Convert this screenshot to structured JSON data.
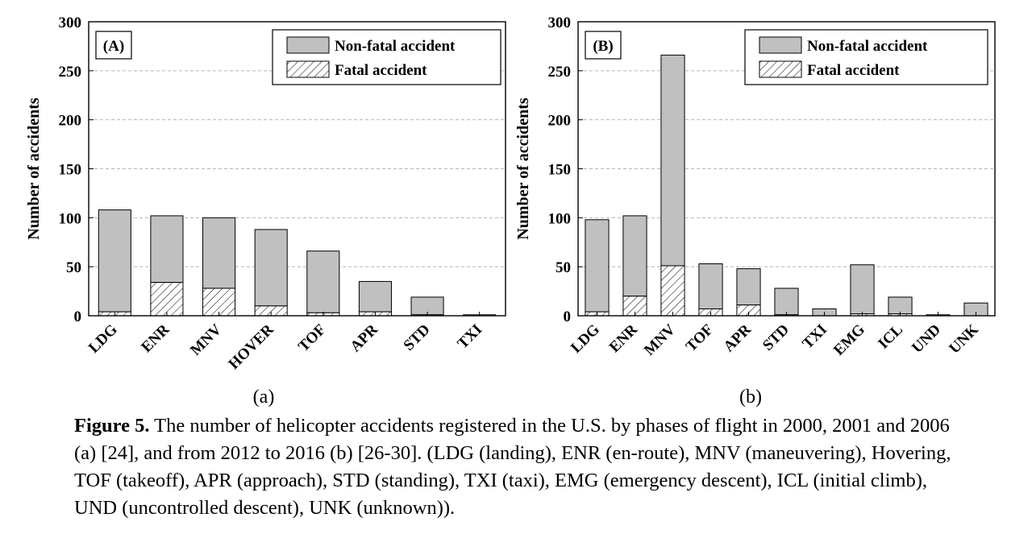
{
  "chart_data": [
    {
      "type": "bar",
      "panel_label": "(A)",
      "sublabel": "(a)",
      "ylabel": "Number of accidents",
      "ylim": [
        0,
        300
      ],
      "yticks": [
        0,
        50,
        100,
        150,
        200,
        250,
        300
      ],
      "grid": "horizontal-dashed",
      "legend_position": "top-right",
      "stacked": true,
      "categories": [
        "LDG",
        "ENR",
        "MNV",
        "HOVER",
        "TOF",
        "APR",
        "STD",
        "TXI"
      ],
      "series": [
        {
          "name": "Non-fatal accident",
          "fill": "#c0c0c0",
          "values": [
            104,
            68,
            72,
            78,
            63,
            31,
            18,
            1
          ]
        },
        {
          "name": "Fatal accident",
          "fill": "hatch",
          "values": [
            4,
            34,
            28,
            10,
            3,
            4,
            1,
            0
          ]
        }
      ]
    },
    {
      "type": "bar",
      "panel_label": "(B)",
      "sublabel": "(b)",
      "ylabel": "Number of accidents",
      "ylim": [
        0,
        300
      ],
      "yticks": [
        0,
        50,
        100,
        150,
        200,
        250,
        300
      ],
      "grid": "horizontal-dashed",
      "legend_position": "top-right",
      "stacked": true,
      "categories": [
        "LDG",
        "ENR",
        "MNV",
        "TOF",
        "APR",
        "STD",
        "TXI",
        "EMG",
        "ICL",
        "UND",
        "UNK"
      ],
      "series": [
        {
          "name": "Non-fatal accident",
          "fill": "#c0c0c0",
          "values": [
            94,
            82,
            215,
            46,
            37,
            27,
            7,
            50,
            17,
            1,
            13
          ]
        },
        {
          "name": "Fatal accident",
          "fill": "hatch",
          "values": [
            4,
            20,
            51,
            7,
            11,
            1,
            0,
            2,
            2,
            0,
            0
          ]
        }
      ]
    }
  ],
  "caption": {
    "label": "Figure 5.",
    "text": " The number of helicopter accidents registered in the U.S. by phases of flight in 2000, 2001 and 2006 (a) [24], and from 2012 to 2016 (b) [26-30]. (LDG (landing), ENR (en-route), MNV (maneuvering), Hovering, TOF (takeoff), APR (approach), STD (standing), TXI (taxi), EMG (emergency descent), ICL (initial climb), UND (uncontrolled descent), UNK (unknown))."
  }
}
